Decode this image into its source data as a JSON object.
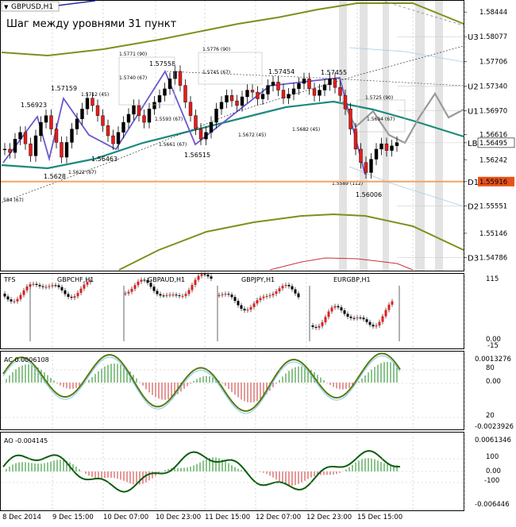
{
  "window": {
    "symbol_title": "GBPUSD,H1",
    "annotation": "Шаг между уровнями 31 пункт"
  },
  "levels": [
    {
      "name": "U3",
      "price": 1.58077
    },
    {
      "name": "U2",
      "price": 1.5734
    },
    {
      "name": "U1",
      "price": 1.5697
    },
    {
      "name": "LB",
      "price": 1.56495
    },
    {
      "name": "D1",
      "price": 1.55916
    },
    {
      "name": "D2",
      "price": 1.55551
    },
    {
      "name": "D3",
      "price": 1.54786
    }
  ],
  "current_price": "1.56495",
  "highlight_price": "1.55916",
  "price_axis": [
    "1.58444",
    "1.58077",
    "1.57706",
    "1.57340",
    "1.56970",
    "1.56616",
    "1.56495",
    "1.56242",
    "1.55916",
    "1.55551",
    "1.55146",
    "1.54786"
  ],
  "time_axis": [
    "8 Dec 2014",
    "9 Dec 15:00",
    "10 Dec 07:00",
    "10 Dec 23:00",
    "11 Dec 15:00",
    "12 Dec 07:00",
    "12 Dec 23:00",
    "15 Dec 15:00"
  ],
  "swing_labels": [
    "1.56923",
    "1.57159",
    "1.5628",
    "1.56463",
    "1.57558",
    "1.56515",
    "1.57454",
    "1.57455",
    "1.56006"
  ],
  "fib_labels": [
    "1.5771 (90)",
    "1.5776 (90)",
    "1.5740 (67)",
    "1.5745 (67)",
    "1.5712 (45)",
    "1.5725 (90)",
    "1.5593 (67)",
    "1.5694 (67)",
    "1.5682 (45)",
    "1.5672 (45)",
    "1.5661 (67)",
    "1.5622 (67)",
    "1.5589 (112)",
    "584 (67)"
  ],
  "tfs_panel": {
    "label": "TFS",
    "pairs": [
      "GBPCHF,H1",
      "GBPAUD,H1",
      "GBPJPY,H1",
      "EURGBP,H1"
    ],
    "axis": [
      "115",
      "0.00",
      "-15"
    ]
  },
  "ac_panel": {
    "label": "AC 0.0006108",
    "axis": [
      "0.0013276",
      "80",
      "0.00",
      "20",
      "-0.0023926"
    ]
  },
  "ao_panel": {
    "label": "AO -0.004145",
    "axis": [
      "0.0061346",
      "100",
      "0.00",
      "-100",
      "-0.006446"
    ]
  },
  "chart_data": {
    "type": "candlestick",
    "symbol": "GBPUSD",
    "timeframe": "H1",
    "ylim": [
      1.546,
      1.586
    ],
    "x_ticks": [
      "8 Dec 2014",
      "9 Dec 15:00",
      "10 Dec 07:00",
      "10 Dec 23:00",
      "11 Dec 15:00",
      "12 Dec 07:00",
      "12 Dec 23:00",
      "15 Dec 15:00"
    ],
    "close": [
      1.564,
      1.5635,
      1.5655,
      1.5665,
      1.5648,
      1.563,
      1.566,
      1.568,
      1.569,
      1.567,
      1.565,
      1.5628,
      1.565,
      1.567,
      1.5685,
      1.57,
      1.5716,
      1.5705,
      1.569,
      1.5675,
      1.566,
      1.5648,
      1.5665,
      1.568,
      1.5692,
      1.5705,
      1.569,
      1.568,
      1.57,
      1.571,
      1.572,
      1.573,
      1.5745,
      1.5756,
      1.5735,
      1.571,
      1.569,
      1.567,
      1.5655,
      1.5665,
      1.568,
      1.57,
      1.571,
      1.572,
      1.5712,
      1.5705,
      1.5718,
      1.5728,
      1.5725,
      1.5715,
      1.5722,
      1.5735,
      1.574,
      1.5728,
      1.5716,
      1.5722,
      1.573,
      1.5738,
      1.5745,
      1.573,
      1.572,
      1.5728,
      1.5736,
      1.5745,
      1.5732,
      1.572,
      1.57,
      1.567,
      1.564,
      1.562,
      1.5605,
      1.5625,
      1.564,
      1.5648,
      1.5638,
      1.5645,
      1.565
    ]
  }
}
